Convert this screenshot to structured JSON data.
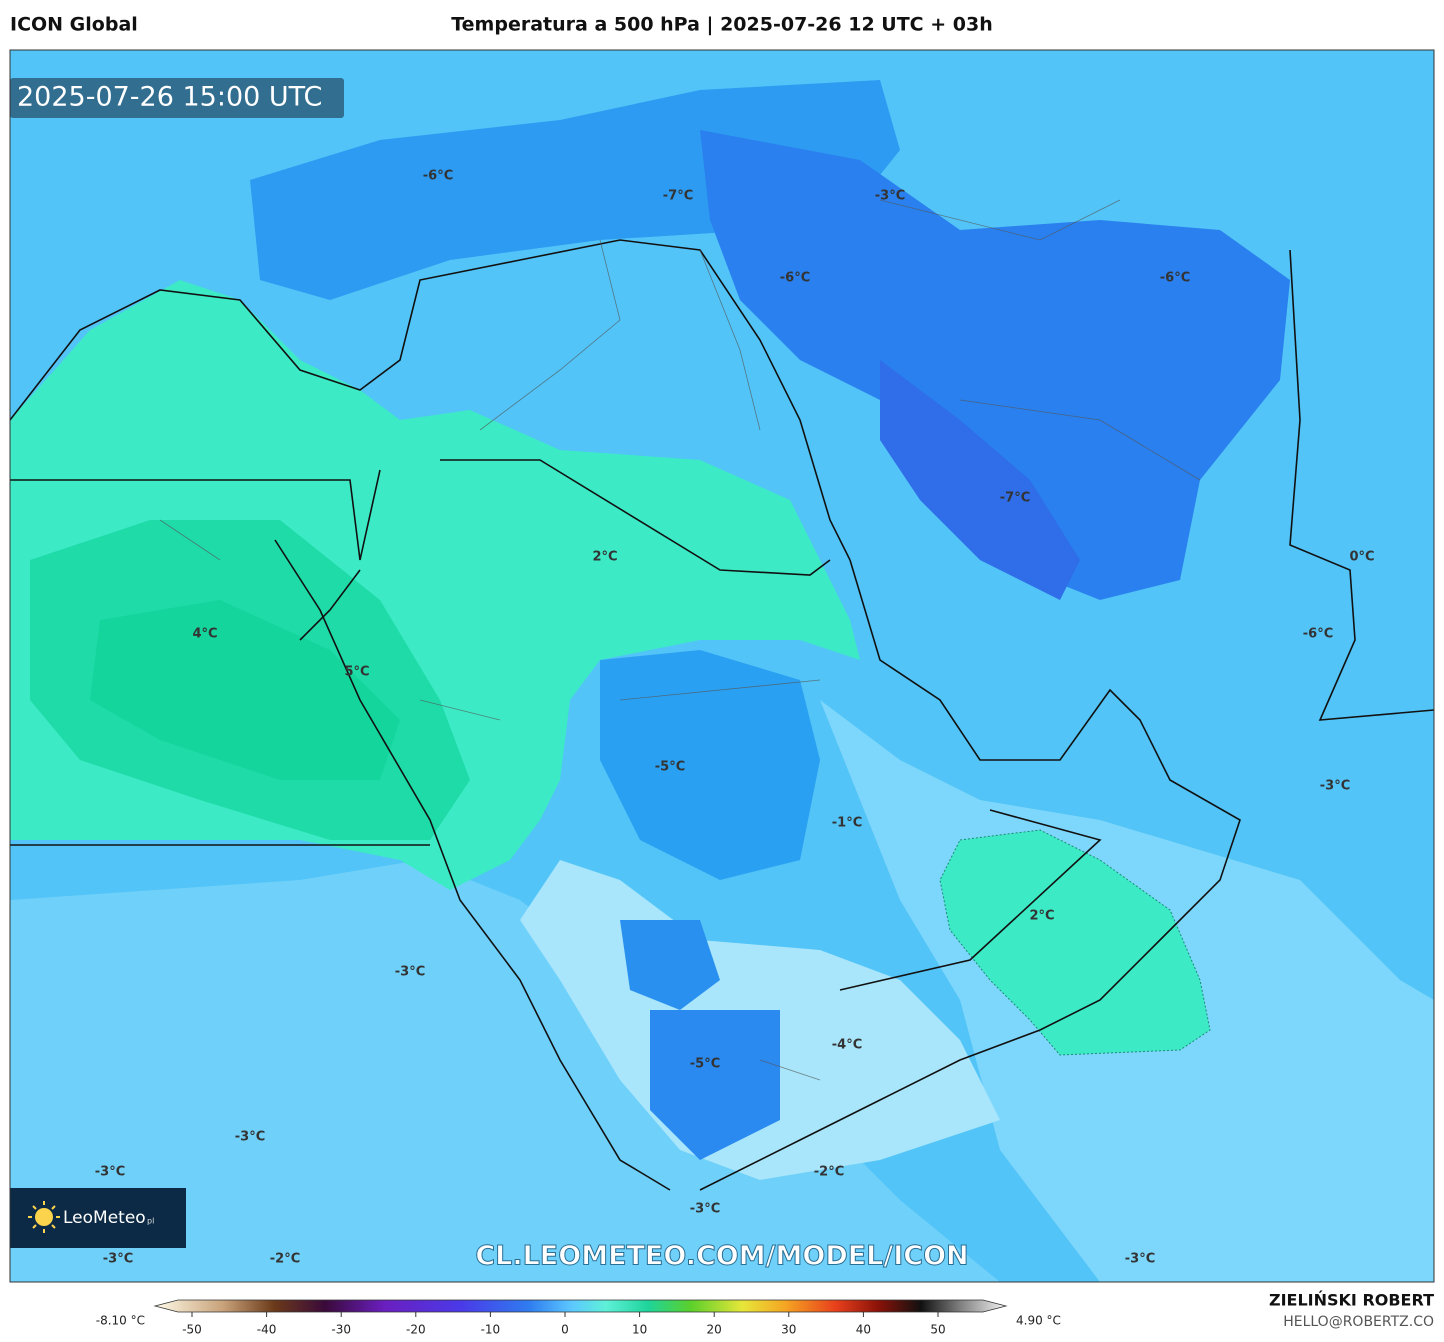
{
  "header": {
    "model": "ICON Global",
    "title": "Temperatura a 500 hPa | 2025-07-26 12 UTC + 03h"
  },
  "map": {
    "timestamp": "2025-07-26 15:00 UTC",
    "labels": [
      "-6°C",
      "-7°C",
      "-3°C",
      "-6°C",
      "-6°C",
      "-7°C",
      "0°C",
      "-6°C",
      "2°C",
      "4°C",
      "5°C",
      "-5°C",
      "-1°C",
      "-3°C",
      "2°C",
      "-3°C",
      "-4°C",
      "-5°C",
      "-3°C",
      "-3°C",
      "-2°C",
      "-3°C",
      "-2°C",
      "-3°C",
      "-3°C"
    ],
    "logo": "LeoMeteo",
    "logo_suffix": "pl",
    "watermark": "CL.LEOMETEO.COM/MODEL/ICON"
  },
  "colorbar": {
    "min_label": "-8.10 °C",
    "max_label": "4.90 °C",
    "ticks": [
      -50,
      -40,
      -30,
      -20,
      -10,
      0,
      10,
      20,
      30,
      40,
      50
    ]
  },
  "footer": {
    "author": "ZIELIŃSKI ROBERT",
    "email": "HELLO@ROBERTZ.CO"
  }
}
